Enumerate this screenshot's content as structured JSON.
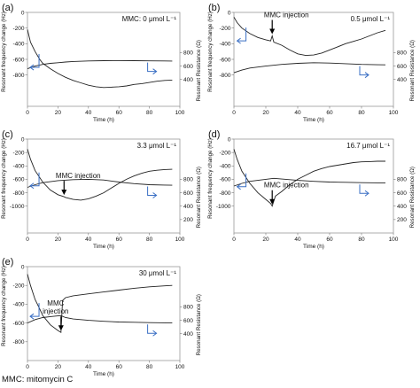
{
  "footnote": "MMC: mitomycin C",
  "chart_data": [
    {
      "type": "line",
      "panel_label": "(a)",
      "annotation": "MMC:  0 μmol L⁻¹",
      "injection_label": "",
      "injection_time": null,
      "xlabel": "Time (h)",
      "ylabel": "Resonant frequency change (Hz)",
      "ylabel_right": "Resonant Resistance (Ω)",
      "xlim": [
        0,
        100
      ],
      "ylim": [
        -1200,
        0
      ],
      "ylim_right": [
        0,
        1400
      ],
      "xticks": [
        0,
        20,
        40,
        60,
        80,
        100
      ],
      "yticks": [
        0,
        -200,
        -400,
        -600,
        -800
      ],
      "yticks_right": [
        400,
        600,
        800
      ],
      "series": [
        {
          "axis": "left",
          "x": [
            0,
            2,
            5,
            8,
            10,
            15,
            20,
            25,
            30,
            35,
            40,
            45,
            50,
            55,
            60,
            65,
            70,
            75,
            80,
            85,
            90,
            95
          ],
          "values": [
            -220,
            -380,
            -500,
            -600,
            -650,
            -720,
            -780,
            -830,
            -870,
            -900,
            -930,
            -950,
            -960,
            -955,
            -950,
            -940,
            -920,
            -910,
            -895,
            -880,
            -870,
            -865
          ]
        },
        {
          "axis": "right",
          "x": [
            0,
            5,
            10,
            15,
            20,
            25,
            30,
            40,
            50,
            60,
            70,
            80,
            90,
            95
          ],
          "values": [
            560,
            600,
            625,
            640,
            650,
            660,
            668,
            676,
            680,
            682,
            680,
            678,
            676,
            675
          ]
        }
      ]
    },
    {
      "type": "line",
      "panel_label": "(b)",
      "annotation": "0.5 μmol L⁻¹",
      "injection_label": "MMC injection",
      "injection_time": 24,
      "xlabel": "Time (h)",
      "ylabel": "Resonant frequency change (Hz)",
      "ylabel_right": "Resonant Resistance (Ω)",
      "xlim": [
        0,
        100
      ],
      "ylim": [
        -1200,
        0
      ],
      "ylim_right": [
        0,
        1400
      ],
      "xticks": [
        0,
        20,
        40,
        60,
        80,
        100
      ],
      "yticks": [
        0,
        -200,
        -400,
        -600,
        -800
      ],
      "yticks_right": [
        400,
        600,
        800
      ],
      "series": [
        {
          "axis": "left",
          "x": [
            0,
            2,
            5,
            10,
            15,
            20,
            23,
            24,
            25,
            30,
            35,
            40,
            45,
            50,
            55,
            60,
            65,
            70,
            75,
            80,
            85,
            90,
            95
          ],
          "values": [
            -60,
            -130,
            -200,
            -270,
            -320,
            -350,
            -365,
            -300,
            -380,
            -420,
            -480,
            -530,
            -550,
            -545,
            -520,
            -480,
            -440,
            -400,
            -370,
            -340,
            -300,
            -260,
            -230
          ]
        },
        {
          "axis": "right",
          "x": [
            0,
            5,
            10,
            20,
            30,
            40,
            50,
            60,
            70,
            80,
            90,
            95
          ],
          "values": [
            500,
            540,
            570,
            600,
            625,
            640,
            650,
            645,
            635,
            625,
            620,
            618
          ]
        }
      ]
    },
    {
      "type": "line",
      "panel_label": "(c)",
      "annotation": "3.3 μmol L⁻¹",
      "injection_label": "MMC injection",
      "injection_time": 24,
      "xlabel": "Time (h)",
      "ylabel": "Resonant frequency change (Hz)",
      "ylabel_right": "Resonant Resistance (Ω)",
      "xlim": [
        0,
        100
      ],
      "ylim": [
        -1400,
        0
      ],
      "ylim_right": [
        0,
        1400
      ],
      "xticks": [
        0,
        20,
        40,
        60,
        80,
        100
      ],
      "yticks": [
        0,
        -200,
        -400,
        -600,
        -800,
        -1000
      ],
      "yticks_right": [
        200,
        400,
        600,
        800
      ],
      "series": [
        {
          "axis": "left",
          "x": [
            0,
            2,
            5,
            10,
            15,
            20,
            24,
            25,
            30,
            35,
            40,
            45,
            50,
            55,
            60,
            65,
            70,
            75,
            80,
            85,
            90,
            95
          ],
          "values": [
            -150,
            -300,
            -470,
            -640,
            -760,
            -830,
            -860,
            -870,
            -900,
            -910,
            -890,
            -850,
            -800,
            -730,
            -660,
            -600,
            -550,
            -510,
            -480,
            -465,
            -455,
            -450
          ]
        },
        {
          "axis": "right",
          "x": [
            0,
            5,
            10,
            20,
            30,
            40,
            50,
            60,
            70,
            80,
            90,
            95
          ],
          "values": [
            680,
            720,
            750,
            780,
            795,
            800,
            790,
            760,
            735,
            720,
            715,
            712
          ]
        }
      ]
    },
    {
      "type": "line",
      "panel_label": "(d)",
      "annotation": "16.7 μmol L⁻¹",
      "injection_label": "MMC injection",
      "injection_time": 24,
      "xlabel": "Time (h)",
      "ylabel": "Resonant frequency change (Hz)",
      "ylabel_right": "Resonant Resistance (Ω)",
      "xlim": [
        0,
        100
      ],
      "ylim": [
        -1400,
        0
      ],
      "ylim_right": [
        0,
        1400
      ],
      "xticks": [
        0,
        20,
        40,
        60,
        80,
        100
      ],
      "yticks": [
        0,
        -200,
        -400,
        -600,
        -800,
        -1000
      ],
      "yticks_right": [
        200,
        400,
        600,
        800
      ],
      "series": [
        {
          "axis": "left",
          "x": [
            0,
            2,
            5,
            10,
            15,
            20,
            23,
            24,
            26,
            30,
            35,
            40,
            45,
            50,
            55,
            60,
            65,
            70,
            75,
            80,
            85,
            90,
            95
          ],
          "values": [
            -150,
            -300,
            -480,
            -660,
            -800,
            -900,
            -960,
            -1000,
            -850,
            -780,
            -680,
            -600,
            -540,
            -480,
            -440,
            -410,
            -390,
            -370,
            -350,
            -340,
            -335,
            -330,
            -330
          ]
        },
        {
          "axis": "right",
          "x": [
            0,
            5,
            10,
            20,
            25,
            30,
            40,
            50,
            60,
            70,
            80,
            90,
            95
          ],
          "values": [
            700,
            740,
            770,
            800,
            815,
            805,
            785,
            770,
            760,
            755,
            750,
            748,
            747
          ]
        }
      ]
    },
    {
      "type": "line",
      "panel_label": "(e)",
      "annotation": "30 μmol L⁻¹",
      "injection_label": "MMC\ninjection",
      "injection_time": 22,
      "xlabel": "Time (h)",
      "ylabel": "Resonant frequency change (Hz)",
      "ylabel_right": "Resonant Resistance (Ω)",
      "xlim": [
        0,
        100
      ],
      "ylim": [
        -1000,
        0
      ],
      "ylim_right": [
        0,
        1400
      ],
      "xticks": [
        0,
        20,
        40,
        60,
        80,
        100
      ],
      "yticks": [
        0,
        -200,
        -400,
        -600,
        -800
      ],
      "yticks_right": [
        400,
        600,
        800
      ],
      "series": [
        {
          "axis": "left",
          "x": [
            0,
            2,
            5,
            8,
            10,
            15,
            20,
            22,
            23,
            25,
            30,
            40,
            50,
            60,
            70,
            80,
            90,
            95
          ],
          "values": [
            -80,
            -200,
            -350,
            -450,
            -520,
            -620,
            -680,
            -700,
            -360,
            -330,
            -310,
            -290,
            -270,
            -250,
            -230,
            -215,
            -205,
            -200
          ]
        },
        {
          "axis": "right",
          "x": [
            0,
            5,
            10,
            15,
            20,
            22,
            25,
            30,
            40,
            50,
            60,
            70,
            80,
            90,
            95
          ],
          "values": [
            560,
            610,
            640,
            655,
            665,
            670,
            640,
            620,
            600,
            585,
            575,
            570,
            565,
            562,
            560
          ]
        }
      ]
    }
  ]
}
